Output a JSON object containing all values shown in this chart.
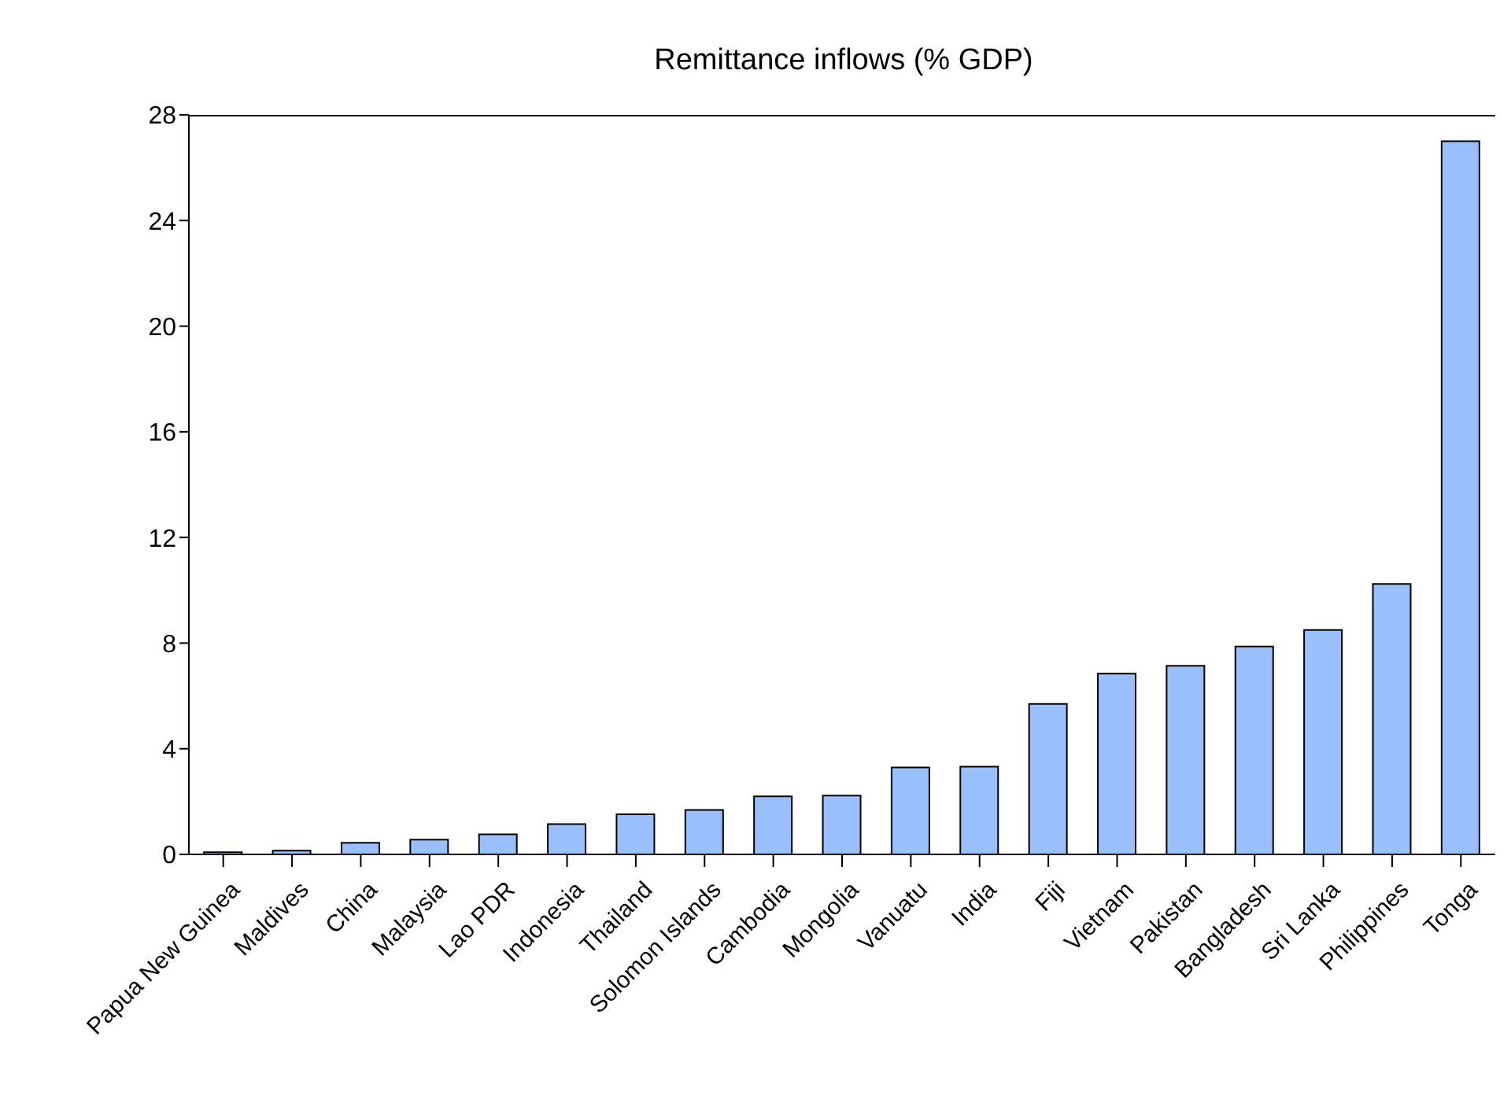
{
  "chart_data": {
    "type": "bar",
    "title": "Remittance inflows (% GDP)",
    "categories": [
      "Papua New Guinea",
      "Maldives",
      "China",
      "Malaysia",
      "Lao PDR",
      "Indonesia",
      "Thailand",
      "Solomon Islands",
      "Cambodia",
      "Mongolia",
      "Vanuatu",
      "India",
      "Fiji",
      "Vietnam",
      "Pakistan",
      "Bangladesh",
      "Sri Lanka",
      "Philippines",
      "Tonga"
    ],
    "values": [
      0.08,
      0.14,
      0.44,
      0.56,
      0.76,
      1.15,
      1.52,
      1.68,
      2.2,
      2.23,
      3.29,
      3.32,
      5.7,
      6.84,
      7.14,
      7.87,
      8.5,
      10.24,
      27.0
    ],
    "color": "#99bfff",
    "ylim": [
      0,
      28
    ],
    "yticks": [
      0,
      4,
      8,
      12,
      16,
      20,
      24,
      28
    ],
    "grid": false
  }
}
